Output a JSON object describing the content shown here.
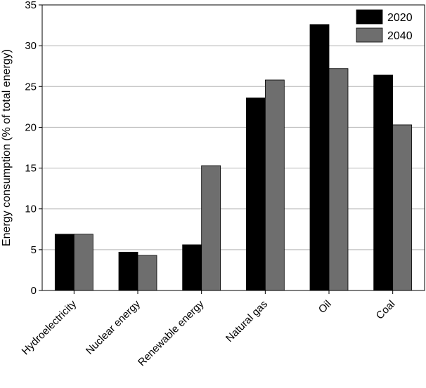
{
  "chart_data": {
    "type": "bar",
    "categories": [
      "Hydroelectricity",
      "Nuclear energy",
      "Renewable energy",
      "Natural gas",
      "Oil",
      "Coal"
    ],
    "series": [
      {
        "name": "2020",
        "values": [
          6.9,
          4.7,
          5.6,
          23.6,
          32.6,
          26.4
        ],
        "color": "#000000"
      },
      {
        "name": "2040",
        "values": [
          6.9,
          4.3,
          15.3,
          25.8,
          27.2,
          20.3
        ],
        "color": "#6e6e6e"
      }
    ],
    "title": "",
    "xlabel": "",
    "ylabel": "Energy consumption (% of total energy)",
    "ylim": [
      0,
      35
    ],
    "yticks": [
      0,
      5,
      10,
      15,
      20,
      25,
      30,
      35
    ],
    "grid": "horizontal",
    "legend_position": "top-right"
  }
}
